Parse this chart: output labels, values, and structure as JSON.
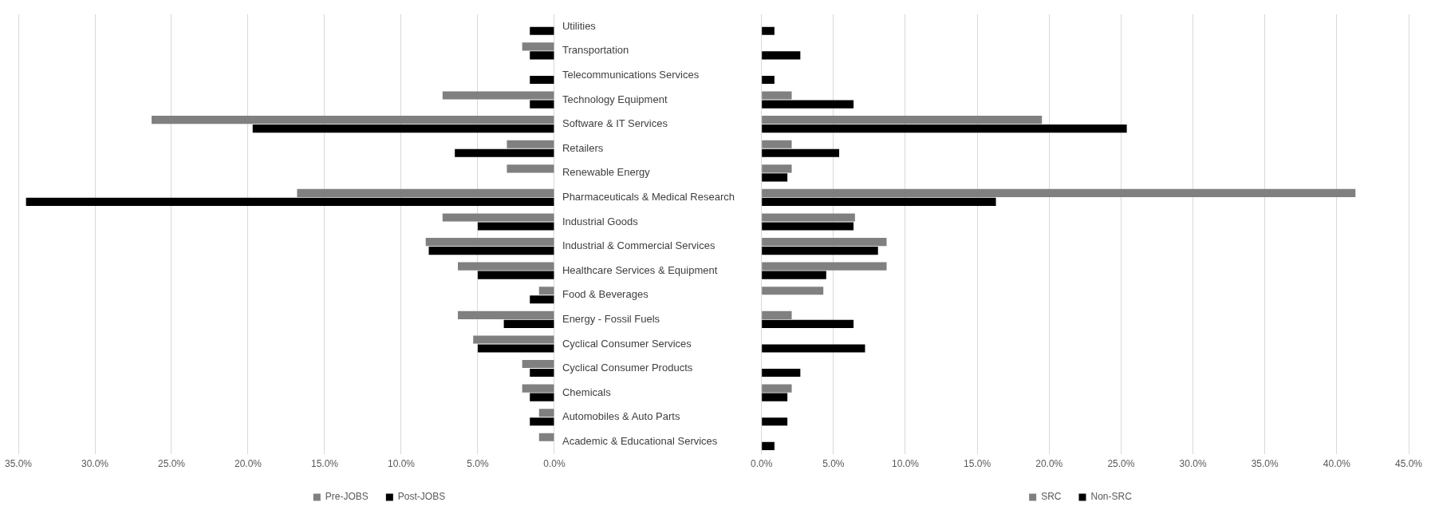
{
  "chart_data": [
    {
      "type": "bar",
      "orientation": "horizontal",
      "categories": [
        "Utilities",
        "Transportation",
        "Telecommunications Services",
        "Technology Equipment",
        "Software & IT Services",
        "Retailers",
        "Renewable Energy",
        "Pharmaceuticals & Medical Research",
        "Industrial Goods",
        "Industrial & Commercial Services",
        "Healthcare Services & Equipment",
        "Food & Beverages",
        "Energy - Fossil Fuels",
        "Cyclical Consumer Services",
        "Cyclical Consumer Products",
        "Chemicals",
        "Automobiles & Auto Parts",
        "Academic & Educational Services"
      ],
      "series": [
        {
          "name": "Pre-JOBS",
          "color": "#808080",
          "values": [
            0,
            2.1,
            0,
            7.3,
            26.3,
            3.1,
            3.1,
            16.8,
            7.3,
            8.4,
            6.3,
            1.0,
            6.3,
            5.3,
            2.1,
            2.1,
            1.0,
            1.0
          ]
        },
        {
          "name": "Post-JOBS",
          "color": "#000000",
          "values": [
            1.6,
            1.6,
            1.6,
            1.6,
            19.7,
            6.5,
            0,
            34.5,
            5.0,
            8.2,
            5.0,
            1.6,
            3.3,
            5.0,
            1.6,
            1.6,
            1.6,
            0
          ]
        }
      ],
      "xlim": [
        35,
        0
      ],
      "xticks": [
        {
          "value": 35,
          "label": "35.0%"
        },
        {
          "value": 30,
          "label": "30.0%"
        },
        {
          "value": 25,
          "label": "25.0%"
        },
        {
          "value": 20,
          "label": "20.0%"
        },
        {
          "value": 15,
          "label": "15.0%"
        },
        {
          "value": 10,
          "label": "10.0%"
        },
        {
          "value": 5,
          "label": "5.0%"
        },
        {
          "value": 0,
          "label": "0.0%"
        }
      ],
      "grid": "x",
      "legend": "bottom"
    },
    {
      "type": "bar",
      "orientation": "horizontal",
      "categories": [
        null,
        null,
        null,
        null,
        null,
        null,
        null,
        null,
        null,
        null,
        null,
        null,
        null,
        null,
        null,
        null,
        null,
        null
      ],
      "series": [
        {
          "name": "SRC",
          "color": "#808080",
          "values": [
            0,
            0,
            0,
            2.1,
            19.5,
            2.1,
            2.1,
            41.3,
            6.5,
            8.7,
            8.7,
            4.3,
            2.1,
            0,
            0,
            2.1,
            0,
            0
          ]
        },
        {
          "name": "Non-SRC",
          "color": "#000000",
          "values": [
            0.9,
            2.7,
            0.9,
            6.4,
            25.4,
            5.4,
            1.8,
            16.3,
            6.4,
            8.1,
            4.5,
            0,
            6.4,
            7.2,
            2.7,
            1.8,
            1.8,
            0.9
          ]
        }
      ],
      "xlim": [
        0,
        45
      ],
      "xticks": [
        {
          "value": 0,
          "label": "0.0%"
        },
        {
          "value": 5,
          "label": "5.0%"
        },
        {
          "value": 10,
          "label": "10.0%"
        },
        {
          "value": 15,
          "label": "15.0%"
        },
        {
          "value": 20,
          "label": "20.0%"
        },
        {
          "value": 25,
          "label": "25.0%"
        },
        {
          "value": 30,
          "label": "30.0%"
        },
        {
          "value": 35,
          "label": "35.0%"
        },
        {
          "value": 40,
          "label": "40.0%"
        },
        {
          "value": 45,
          "label": "45.0%"
        }
      ],
      "grid": "x",
      "legend": "bottom",
      "tick_labels": "x"
    }
  ]
}
